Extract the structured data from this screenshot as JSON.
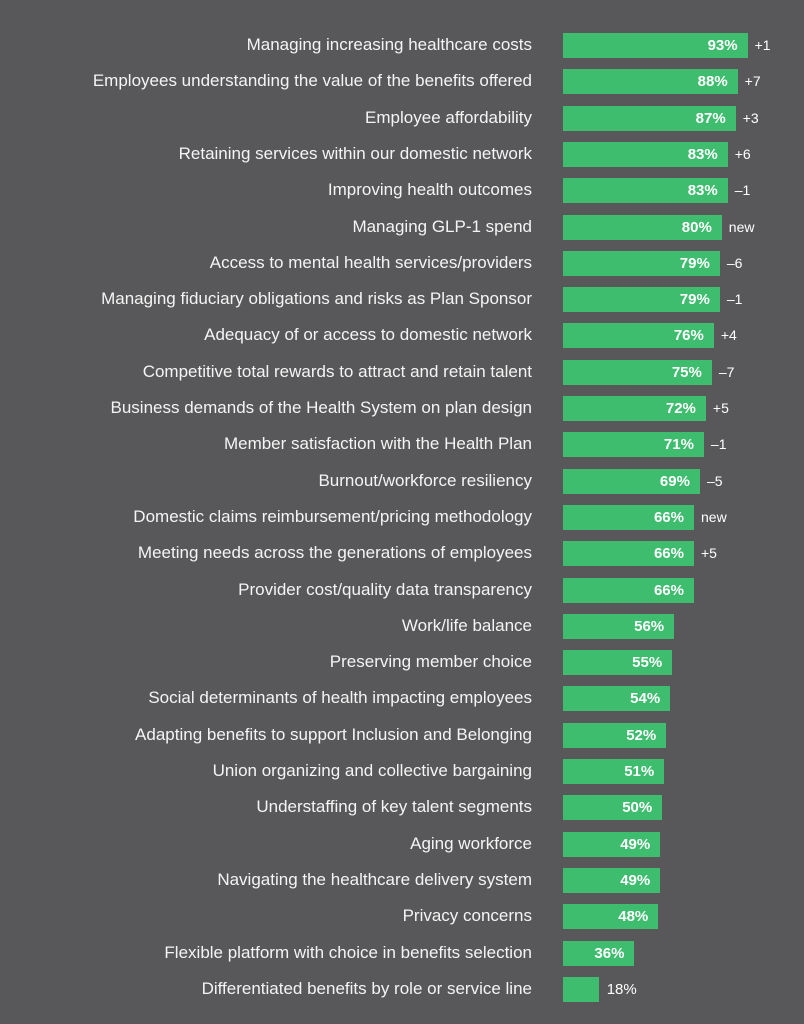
{
  "chart_data": {
    "type": "bar",
    "orientation": "horizontal",
    "title": "",
    "xlabel": "",
    "ylabel": "",
    "xlim": [
      0,
      100
    ],
    "value_suffix": "%",
    "categories": [
      "Managing increasing healthcare costs",
      "Employees understanding the value of the benefits offered",
      "Employee affordability",
      "Retaining services within our domestic network",
      "Improving health outcomes",
      "Managing GLP-1 spend",
      "Access to mental health services/providers",
      "Managing fiduciary obligations and risks as Plan Sponsor",
      "Adequacy of or access to domestic network",
      "Competitive total rewards to attract and retain talent",
      "Business demands of the Health System on plan design",
      "Member satisfaction with the Health Plan",
      "Burnout/workforce resiliency",
      "Domestic claims reimbursement/pricing methodology",
      "Meeting needs across the generations of employees",
      "Provider cost/quality data transparency",
      "Work/life balance",
      "Preserving member choice",
      "Social determinants of health impacting employees",
      "Adapting benefits to support Inclusion and Belonging",
      "Union organizing and collective bargaining",
      "Understaffing of key talent segments",
      "Aging workforce",
      "Navigating the healthcare delivery system",
      "Privacy concerns",
      "Flexible platform with choice in benefits selection",
      "Differentiated benefits by role or service line"
    ],
    "values": [
      93,
      88,
      87,
      83,
      83,
      80,
      79,
      79,
      76,
      75,
      72,
      71,
      69,
      66,
      66,
      66,
      56,
      55,
      54,
      52,
      51,
      50,
      49,
      49,
      48,
      36,
      18
    ],
    "changes": [
      "+1",
      "+7",
      "+3",
      "+6",
      "–1",
      "new",
      "–6",
      "–1",
      "+4",
      "–7",
      "+5",
      "–1",
      "–5",
      "new",
      "+5",
      "",
      "",
      "",
      "",
      "",
      "",
      "",
      "",
      "",
      "",
      "",
      ""
    ],
    "colors": {
      "bar": "#3dbd6d",
      "background": "#58585a",
      "text": "#f4f4f4"
    }
  }
}
